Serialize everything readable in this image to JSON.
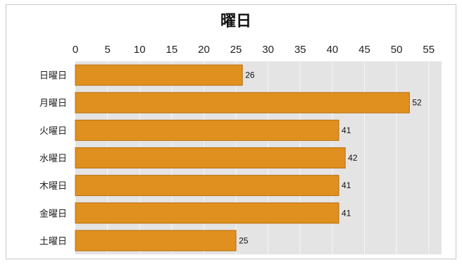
{
  "chart_data": {
    "type": "bar",
    "orientation": "horizontal",
    "title": "曜日",
    "xlabel": "",
    "ylabel": "",
    "categories": [
      "日曜日",
      "月曜日",
      "火曜日",
      "水曜日",
      "木曜日",
      "金曜日",
      "土曜日"
    ],
    "values": [
      26,
      52,
      41,
      42,
      41,
      41,
      25
    ],
    "xlim": [
      0,
      57
    ],
    "xticks": [
      0,
      5,
      10,
      15,
      20,
      25,
      30,
      35,
      40,
      45,
      50,
      55
    ],
    "axis_position": "top",
    "grid": true,
    "data_labels": true,
    "legend": "none",
    "colors": {
      "bar": "#E0901E",
      "bar_edge": "#B86E10",
      "plot_bg": "#E4E4E4",
      "grid": "#F6F6F6"
    }
  }
}
